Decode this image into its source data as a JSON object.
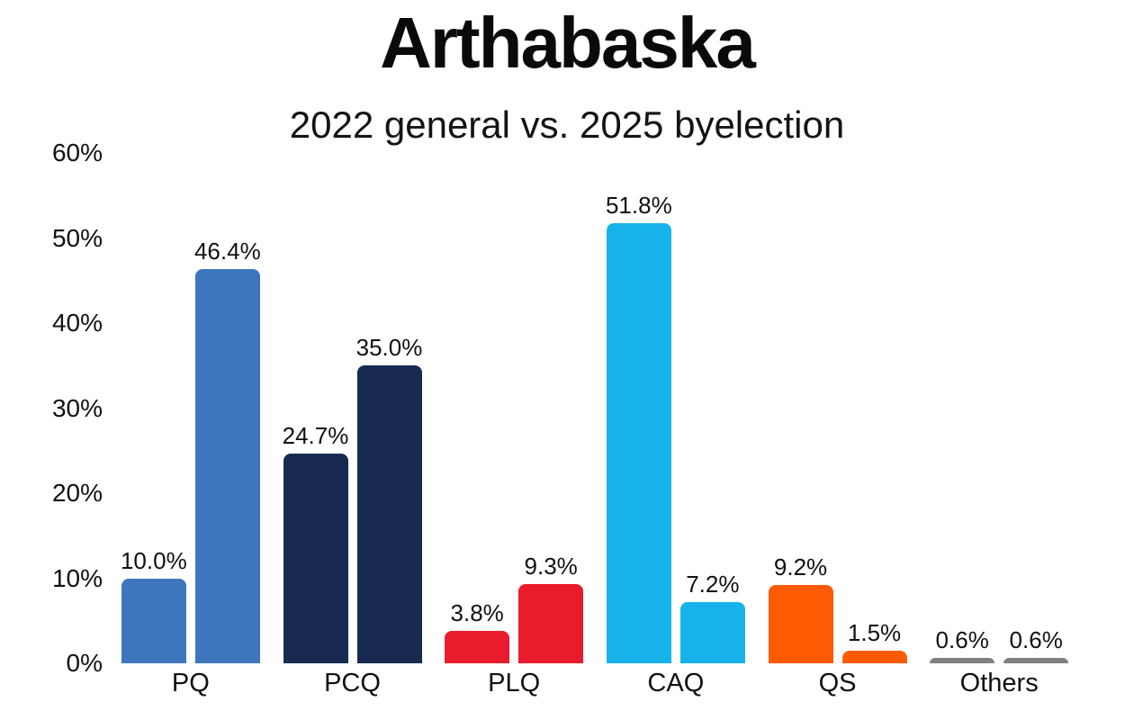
{
  "header": {
    "title": "Arthabaska",
    "subtitle": "2022 general vs. 2025 byelection"
  },
  "chart_data": {
    "type": "bar",
    "title": "Arthabaska",
    "subtitle": "2022 general vs. 2025 byelection",
    "categories": [
      "PQ",
      "PCQ",
      "PLQ",
      "CAQ",
      "QS",
      "Others"
    ],
    "series": [
      {
        "name": "2022 general",
        "values": [
          10.0,
          24.7,
          3.8,
          51.8,
          9.2,
          0.6
        ]
      },
      {
        "name": "2025 byelection",
        "values": [
          46.4,
          35.0,
          9.3,
          7.2,
          1.5,
          0.6
        ]
      }
    ],
    "value_labels": [
      [
        "10.0%",
        "46.4%"
      ],
      [
        "24.7%",
        "35.0%"
      ],
      [
        "3.8%",
        "9.3%"
      ],
      [
        "51.8%",
        "7.2%"
      ],
      [
        "9.2%",
        "1.5%"
      ],
      [
        "0.6%",
        "0.6%"
      ]
    ],
    "bar_colors": [
      "#3d76bc",
      "#192a50",
      "#e91b2c",
      "#18b2ea",
      "#ff5b04",
      "#808080"
    ],
    "ylim": [
      0,
      60
    ],
    "yticks": [
      "0%",
      "10%",
      "20%",
      "30%",
      "40%",
      "50%",
      "60%"
    ],
    "ytick_values": [
      0,
      10,
      20,
      30,
      40,
      50,
      60
    ],
    "grid": false,
    "legend": "none",
    "background_color": "#ffffff",
    "text_color": "#111111"
  }
}
